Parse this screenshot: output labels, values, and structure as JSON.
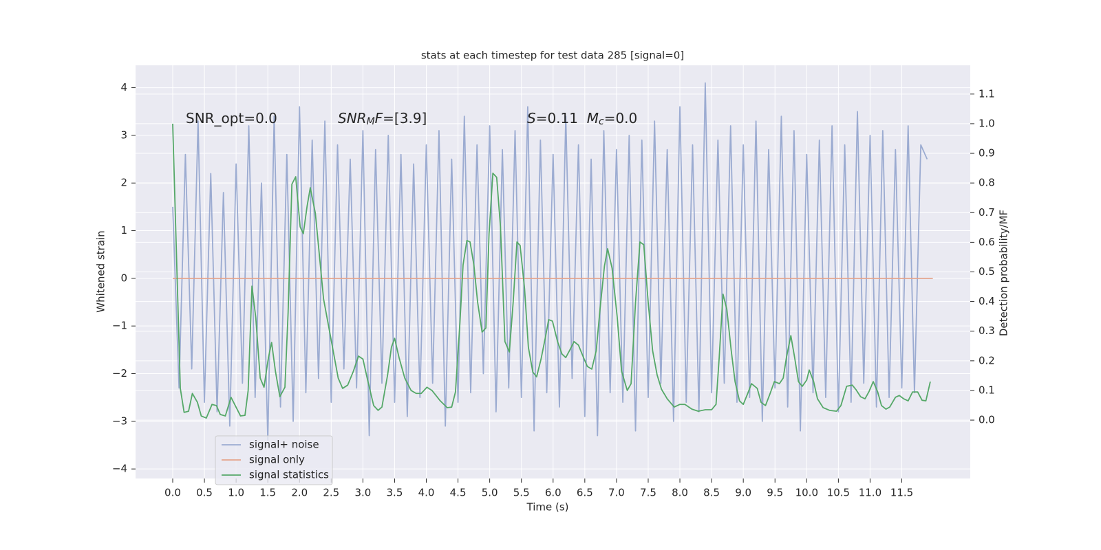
{
  "chart_data": {
    "type": "line",
    "title": "stats at each timestep for test data 285 [signal=0]",
    "x_label": "Time (s)",
    "y_label": "Whitened strain",
    "y2_label": "Detection probability/MF",
    "xlim": [
      -0.586,
      12.58
    ],
    "ylim": [
      -4.2,
      4.47
    ],
    "y2lim": [
      -0.197,
      1.197
    ],
    "grid": true,
    "legend": "lower left",
    "xticks": [
      {
        "value": 0,
        "label": "0.0"
      },
      {
        "value": 0.5,
        "label": "0.5"
      },
      {
        "value": 1,
        "label": "1.0"
      },
      {
        "value": 1.5,
        "label": "1.5"
      },
      {
        "value": 2,
        "label": "2.0"
      },
      {
        "value": 2.5,
        "label": "2.5"
      },
      {
        "value": 3,
        "label": "3.0"
      },
      {
        "value": 3.5,
        "label": "3.5"
      },
      {
        "value": 4,
        "label": "4.0"
      },
      {
        "value": 4.5,
        "label": "4.5"
      },
      {
        "value": 5,
        "label": "5.0"
      },
      {
        "value": 5.5,
        "label": "5.5"
      },
      {
        "value": 6,
        "label": "6.0"
      },
      {
        "value": 6.5,
        "label": "6.5"
      },
      {
        "value": 7,
        "label": "7.0"
      },
      {
        "value": 7.5,
        "label": "7.5"
      },
      {
        "value": 8,
        "label": "8.0"
      },
      {
        "value": 8.5,
        "label": "8.5"
      },
      {
        "value": 9,
        "label": "9.0"
      },
      {
        "value": 9.5,
        "label": "9.5"
      },
      {
        "value": 10,
        "label": "10.0"
      },
      {
        "value": 10.5,
        "label": "10.5"
      },
      {
        "value": 11,
        "label": "11.0"
      },
      {
        "value": 11.5,
        "label": "11.5"
      }
    ],
    "yticks": [
      {
        "value": -4,
        "label": "−4"
      },
      {
        "value": -3,
        "label": "−3"
      },
      {
        "value": -2,
        "label": "−2"
      },
      {
        "value": -1,
        "label": "−1"
      },
      0,
      1,
      2,
      3,
      4
    ],
    "y2ticks": [
      {
        "value": 0,
        "label": "0.0"
      },
      {
        "value": 0.1,
        "label": "0.1"
      },
      {
        "value": 0.2,
        "label": "0.2"
      },
      {
        "value": 0.3,
        "label": "0.3"
      },
      {
        "value": 0.4,
        "label": "0.4"
      },
      {
        "value": 0.5,
        "label": "0.5"
      },
      {
        "value": 0.6,
        "label": "0.6"
      },
      {
        "value": 0.7,
        "label": "0.7"
      },
      {
        "value": 0.8,
        "label": "0.8"
      },
      {
        "value": 0.9,
        "label": "0.9"
      },
      {
        "value": 1,
        "label": "1.0"
      },
      {
        "value": 1.1,
        "label": "1.1"
      }
    ],
    "annotations": [
      [
        {
          "t": "SNR_opt=0.0"
        }
      ],
      [
        {
          "t": "SNR",
          "i": true
        },
        {
          "t": "M",
          "i": true,
          "sub": true
        },
        {
          "t": "F",
          "i": true
        },
        {
          "t": "=[3.9]"
        }
      ],
      [
        {
          "t": "S",
          "i": true
        },
        {
          "t": "=0.11  "
        },
        {
          "t": "M",
          "i": true
        },
        {
          "t": "c",
          "i": true,
          "sub": true
        },
        {
          "t": "=0.0"
        }
      ]
    ],
    "series": [
      {
        "name": "signal+ noise",
        "color": "#8da0cb",
        "opacity": 0.85,
        "x": [
          0,
          0.1,
          0.2,
          0.3,
          0.4,
          0.5,
          0.6,
          0.7,
          0.8,
          0.9,
          1,
          1.1,
          1.2,
          1.3,
          1.4,
          1.5,
          1.6,
          1.7,
          1.8,
          1.9,
          2,
          2.1,
          2.2,
          2.3,
          2.4,
          2.5,
          2.6,
          2.7,
          2.8,
          2.9,
          3,
          3.1,
          3.2,
          3.3,
          3.4,
          3.5,
          3.6,
          3.7,
          3.8,
          3.9,
          4,
          4.1,
          4.2,
          4.3,
          4.4,
          4.5,
          4.6,
          4.7,
          4.8,
          4.9,
          5,
          5.1,
          5.2,
          5.3,
          5.4,
          5.5,
          5.6,
          5.7,
          5.8,
          5.9,
          6,
          6.1,
          6.2,
          6.3,
          6.4,
          6.5,
          6.6,
          6.7,
          6.8,
          6.9,
          7,
          7.1,
          7.2,
          7.3,
          7.4,
          7.5,
          7.6,
          7.7,
          7.8,
          7.9,
          8,
          8.1,
          8.2,
          8.3,
          8.4,
          8.5,
          8.6,
          8.7,
          8.8,
          8.9,
          9,
          9.1,
          9.2,
          9.3,
          9.4,
          9.5,
          9.6,
          9.7,
          9.8,
          9.9,
          10,
          10.1,
          10.2,
          10.3,
          10.4,
          10.5,
          10.6,
          10.7,
          10.8,
          10.9,
          11,
          11.1,
          11.2,
          11.3,
          11.4,
          11.5,
          11.6,
          11.7,
          11.8,
          11.9
        ],
        "values": [
          1.5,
          -2.3,
          2.6,
          -1.9,
          3.3,
          -2.6,
          2.2,
          -2.8,
          1.8,
          -3.1,
          2.4,
          -2.2,
          3.2,
          -2.5,
          2.0,
          -3.4,
          3.4,
          -2.7,
          2.6,
          -3.0,
          3.6,
          -2.4,
          2.9,
          -2.1,
          3.3,
          -2.6,
          2.8,
          -1.9,
          2.5,
          -2.3,
          3.1,
          -3.3,
          2.7,
          -2.2,
          3.0,
          -2.6,
          2.6,
          -2.9,
          2.4,
          -2.5,
          2.8,
          -2.2,
          3.1,
          -3.1,
          2.5,
          -2.6,
          3.4,
          -2.4,
          2.8,
          -2.0,
          3.2,
          -2.8,
          2.7,
          -2.3,
          3.1,
          -2.5,
          3.6,
          -3.2,
          2.9,
          -2.4,
          2.6,
          -2.7,
          3.4,
          -2.1,
          2.8,
          -2.9,
          2.5,
          -3.3,
          3.1,
          -2.4,
          2.7,
          -2.6,
          3.0,
          -3.2,
          2.9,
          -2.5,
          3.3,
          -2.2,
          2.7,
          -3.0,
          3.6,
          -2.6,
          2.8,
          -2.8,
          4.1,
          -2.4,
          2.9,
          -2.2,
          3.2,
          -2.6,
          2.8,
          -2.5,
          3.3,
          -3.0,
          2.7,
          -2.3,
          3.4,
          -2.7,
          3.1,
          -3.2,
          2.6,
          -2.4,
          2.9,
          -2.5,
          3.2,
          -2.8,
          2.8,
          -2.6,
          3.5,
          -2.2,
          3.0,
          -2.7,
          3.1,
          -2.5,
          2.7,
          -2.3,
          3.2,
          -2.4,
          2.8,
          2.5
        ]
      },
      {
        "name": "signal only",
        "color": "#e5a48c",
        "opacity": 1,
        "x": [
          0,
          11.99
        ],
        "values": [
          0,
          0
        ]
      },
      {
        "name": "signal statistics",
        "color": "#55a868",
        "opacity": 1,
        "axis": "y2",
        "x": [
          0,
          0.12,
          0.18,
          0.25,
          0.31,
          0.39,
          0.45,
          0.53,
          0.62,
          0.69,
          0.75,
          0.83,
          0.92,
          1.07,
          1.14,
          1.19,
          1.25,
          1.31,
          1.38,
          1.44,
          1.51,
          1.56,
          1.62,
          1.69,
          1.77,
          1.82,
          1.88,
          1.94,
          2.01,
          2.06,
          2.12,
          2.17,
          2.25,
          2.38,
          2.49,
          2.61,
          2.68,
          2.76,
          2.85,
          2.93,
          3.0,
          3.08,
          3.17,
          3.24,
          3.3,
          3.39,
          3.45,
          3.5,
          3.57,
          3.66,
          3.76,
          3.84,
          3.92,
          4.01,
          4.09,
          4.22,
          4.33,
          4.4,
          4.46,
          4.53,
          4.58,
          4.64,
          4.69,
          4.75,
          4.81,
          4.88,
          4.94,
          4.99,
          5.05,
          5.11,
          5.17,
          5.24,
          5.31,
          5.37,
          5.43,
          5.48,
          5.55,
          5.61,
          5.68,
          5.74,
          5.81,
          5.88,
          5.93,
          5.99,
          6.07,
          6.14,
          6.2,
          6.27,
          6.33,
          6.4,
          6.47,
          6.54,
          6.61,
          6.68,
          6.74,
          6.81,
          6.86,
          6.93,
          7.01,
          7.08,
          7.17,
          7.23,
          7.3,
          7.37,
          7.43,
          7.5,
          7.57,
          7.64,
          7.71,
          7.8,
          7.91,
          8.0,
          8.08,
          8.19,
          8.29,
          8.4,
          8.5,
          8.57,
          8.62,
          8.68,
          8.74,
          8.81,
          8.87,
          8.94,
          9.0,
          9.07,
          9.13,
          9.22,
          9.28,
          9.35,
          9.42,
          9.49,
          9.57,
          9.63,
          9.68,
          9.75,
          9.81,
          9.87,
          9.93,
          10.0,
          10.04,
          10.11,
          10.17,
          10.26,
          10.36,
          10.47,
          10.54,
          10.63,
          10.72,
          10.78,
          10.85,
          10.92,
          10.98,
          11.05,
          11.12,
          11.18,
          11.25,
          11.31,
          11.4,
          11.46,
          11.53,
          11.6,
          11.67,
          11.75,
          11.82,
          11.88,
          11.95
        ],
        "values": [
          1.0,
          0.107,
          0.026,
          0.03,
          0.09,
          0.06,
          0.014,
          0.007,
          0.053,
          0.049,
          0.019,
          0.014,
          0.077,
          0.014,
          0.016,
          0.1,
          0.452,
          0.346,
          0.142,
          0.111,
          0.211,
          0.262,
          0.165,
          0.079,
          0.111,
          0.362,
          0.796,
          0.821,
          0.652,
          0.629,
          0.722,
          0.784,
          0.698,
          0.408,
          0.281,
          0.142,
          0.107,
          0.118,
          0.165,
          0.216,
          0.206,
          0.13,
          0.049,
          0.033,
          0.044,
          0.153,
          0.246,
          0.276,
          0.211,
          0.142,
          0.1,
          0.09,
          0.09,
          0.111,
          0.1,
          0.065,
          0.042,
          0.044,
          0.095,
          0.327,
          0.524,
          0.606,
          0.601,
          0.524,
          0.397,
          0.297,
          0.311,
          0.629,
          0.833,
          0.819,
          0.652,
          0.265,
          0.23,
          0.397,
          0.601,
          0.589,
          0.443,
          0.246,
          0.162,
          0.146,
          0.206,
          0.281,
          0.339,
          0.334,
          0.265,
          0.223,
          0.211,
          0.239,
          0.265,
          0.253,
          0.216,
          0.181,
          0.172,
          0.234,
          0.374,
          0.52,
          0.578,
          0.513,
          0.35,
          0.165,
          0.1,
          0.123,
          0.397,
          0.601,
          0.592,
          0.397,
          0.234,
          0.153,
          0.104,
          0.072,
          0.044,
          0.053,
          0.053,
          0.037,
          0.03,
          0.035,
          0.035,
          0.053,
          0.211,
          0.425,
          0.374,
          0.234,
          0.13,
          0.065,
          0.053,
          0.09,
          0.123,
          0.107,
          0.06,
          0.049,
          0.088,
          0.13,
          0.123,
          0.142,
          0.211,
          0.285,
          0.211,
          0.13,
          0.114,
          0.135,
          0.169,
          0.13,
          0.072,
          0.042,
          0.033,
          0.03,
          0.049,
          0.114,
          0.118,
          0.102,
          0.079,
          0.072,
          0.095,
          0.13,
          0.095,
          0.049,
          0.037,
          0.044,
          0.077,
          0.083,
          0.072,
          0.065,
          0.095,
          0.095,
          0.067,
          0.065,
          0.13
        ]
      }
    ]
  }
}
